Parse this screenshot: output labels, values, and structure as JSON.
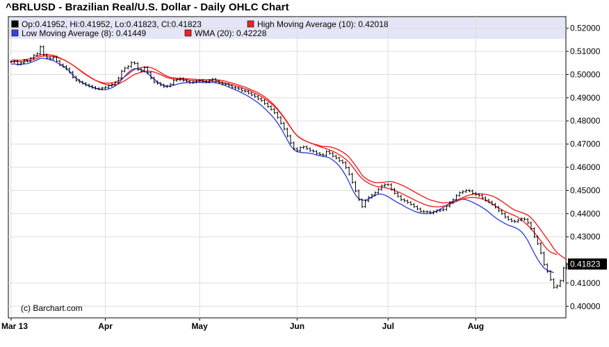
{
  "title": "^BRLUSD - Brazilian Real/U.S. Dollar - Daily OHLC Chart",
  "legend": {
    "ohlc": "Op:0.41952, Hi:0.41952, Lo:0.41823, Cl:0.41823",
    "high_ma": "High Moving Average (10): 0.42018",
    "low_ma": "Low Moving Average (8): 0.41449",
    "wma": "WMA (20): 0.42228"
  },
  "colors": {
    "ohlc": "#000000",
    "high_ma": "#ee2222",
    "low_ma": "#3344dd",
    "wma": "#ee2222",
    "legend_bg": "#e4e6f7",
    "last_price_bg": "#000000"
  },
  "copyright": "(c) Barchart.com",
  "chart_data": {
    "type": "line",
    "ylim": [
      0.395,
      0.525
    ],
    "y_ticks": [
      "0.52000",
      "0.51000",
      "0.50000",
      "0.49000",
      "0.48000",
      "0.47000",
      "0.46000",
      "0.45000",
      "0.44000",
      "0.43000",
      "0.41000",
      "0.40000"
    ],
    "y_tick_values": [
      0.52,
      0.51,
      0.5,
      0.49,
      0.48,
      0.47,
      0.46,
      0.45,
      0.44,
      0.43,
      0.41,
      0.4
    ],
    "last_price_label": "0.41823",
    "last_price": 0.41823,
    "x_labels": [
      "Mar 13",
      "Apr",
      "May",
      "Jun",
      "Jul",
      "Aug"
    ],
    "x_label_index": [
      0,
      29,
      58,
      88,
      116,
      143
    ],
    "n_days": 170,
    "ohlc_close": [
      0.5055,
      0.5058,
      0.5045,
      0.505,
      0.5062,
      0.5058,
      0.507,
      0.5083,
      0.509,
      0.512,
      0.5085,
      0.5072,
      0.5068,
      0.5075,
      0.5058,
      0.5042,
      0.5035,
      0.5025,
      0.501,
      0.4988,
      0.4975,
      0.4968,
      0.4962,
      0.4955,
      0.495,
      0.4945,
      0.494,
      0.4938,
      0.4942,
      0.4945,
      0.4952,
      0.4958,
      0.4965,
      0.4985,
      0.5015,
      0.5028,
      0.5035,
      0.5052,
      0.5048,
      0.5022,
      0.5015,
      0.503,
      0.5008,
      0.4985,
      0.4968,
      0.4962,
      0.4955,
      0.4948,
      0.495,
      0.4958,
      0.4975,
      0.4978,
      0.4982,
      0.4975,
      0.497,
      0.4965,
      0.4968,
      0.4972,
      0.4975,
      0.497,
      0.4968,
      0.4975,
      0.498,
      0.4972,
      0.4965,
      0.496,
      0.4958,
      0.4952,
      0.4945,
      0.4942,
      0.4938,
      0.493,
      0.4928,
      0.492,
      0.4912,
      0.4905,
      0.4895,
      0.4888,
      0.4875,
      0.4862,
      0.485,
      0.4835,
      0.4815,
      0.479,
      0.4765,
      0.4735,
      0.4705,
      0.468,
      0.4672,
      0.4685,
      0.4688,
      0.468,
      0.4672,
      0.4668,
      0.466,
      0.4655,
      0.4652,
      0.4668,
      0.466,
      0.4648,
      0.464,
      0.4628,
      0.462,
      0.4598,
      0.457,
      0.4535,
      0.4498,
      0.446,
      0.443,
      0.4455,
      0.447,
      0.448,
      0.449,
      0.4505,
      0.452,
      0.4525,
      0.4525,
      0.4505,
      0.4488,
      0.4475,
      0.446,
      0.4455,
      0.4448,
      0.444,
      0.443,
      0.442,
      0.441,
      0.4408,
      0.4408,
      0.4402,
      0.4408,
      0.4412,
      0.4415,
      0.4418,
      0.4432,
      0.4448,
      0.446,
      0.4478,
      0.449,
      0.4495,
      0.45,
      0.4498,
      0.4488,
      0.4482,
      0.4478,
      0.4468,
      0.4458,
      0.445,
      0.444,
      0.4428,
      0.4412,
      0.44,
      0.4385,
      0.4375,
      0.4368,
      0.4365,
      0.4372,
      0.4378,
      0.4375,
      0.436,
      0.4335,
      0.43,
      0.427,
      0.423,
      0.418,
      0.415,
      0.4115,
      0.4082,
      0.4088,
      0.411,
      0.4165,
      0.4182
    ],
    "series": [
      {
        "name": "High Moving Average (10)",
        "color": "#ee2222",
        "values": [
          0.5062,
          0.5063,
          0.5062,
          0.5062,
          0.5064,
          0.5066,
          0.5069,
          0.5073,
          0.5078,
          0.5085,
          0.5087,
          0.5087,
          0.5085,
          0.5083,
          0.5079,
          0.5072,
          0.5065,
          0.5058,
          0.505,
          0.5041,
          0.503,
          0.502,
          0.5009,
          0.4999,
          0.4991,
          0.4982,
          0.4975,
          0.497,
          0.4965,
          0.4963,
          0.4963,
          0.4964,
          0.4967,
          0.4973,
          0.4981,
          0.4991,
          0.5002,
          0.5013,
          0.5022,
          0.5027,
          0.503,
          0.5033,
          0.5033,
          0.503,
          0.5025,
          0.5017,
          0.5009,
          0.5,
          0.4993,
          0.4988,
          0.4986,
          0.4984,
          0.4984,
          0.4983,
          0.4982,
          0.4981,
          0.498,
          0.4979,
          0.4978,
          0.4978,
          0.4978,
          0.4978,
          0.4979,
          0.4978,
          0.4976,
          0.4974,
          0.4971,
          0.4967,
          0.4963,
          0.4959,
          0.4955,
          0.495,
          0.4946,
          0.494,
          0.4934,
          0.4928,
          0.4921,
          0.4913,
          0.4904,
          0.4893,
          0.4881,
          0.4868,
          0.4852,
          0.4834,
          0.4815,
          0.4795,
          0.4773,
          0.4752,
          0.4736,
          0.4725,
          0.4717,
          0.4711,
          0.4705,
          0.4701,
          0.4697,
          0.4693,
          0.469,
          0.4689,
          0.4688,
          0.4685,
          0.468,
          0.4674,
          0.4666,
          0.4656,
          0.4643,
          0.4626,
          0.4607,
          0.4587,
          0.4565,
          0.4553,
          0.4544,
          0.4538,
          0.4534,
          0.4533,
          0.4534,
          0.4536,
          0.4538,
          0.4538,
          0.4535,
          0.453,
          0.4524,
          0.4518,
          0.451,
          0.4503,
          0.4495,
          0.4487,
          0.4479,
          0.4472,
          0.4465,
          0.4459,
          0.4455,
          0.4451,
          0.4448,
          0.4446,
          0.4447,
          0.4449,
          0.4452,
          0.4457,
          0.4463,
          0.4469,
          0.4475,
          0.448,
          0.4483,
          0.4485,
          0.4486,
          0.4485,
          0.4483,
          0.448,
          0.4476,
          0.447,
          0.4462,
          0.4453,
          0.4443,
          0.4433,
          0.4423,
          0.4415,
          0.441,
          0.4405,
          0.44,
          0.4393,
          0.4382,
          0.4366,
          0.4348,
          0.4329,
          0.4309,
          0.429,
          0.427,
          0.4248,
          0.4232,
          0.422,
          0.421,
          0.4202
        ]
      },
      {
        "name": "Low Moving Average (8)",
        "color": "#3344dd",
        "values": [
          0.5045,
          0.5046,
          0.5043,
          0.5043,
          0.5046,
          0.5047,
          0.5052,
          0.5057,
          0.5063,
          0.507,
          0.507,
          0.5068,
          0.5064,
          0.506,
          0.5053,
          0.5044,
          0.5036,
          0.5025,
          0.5013,
          0.4998,
          0.4985,
          0.4974,
          0.4964,
          0.4957,
          0.4951,
          0.4945,
          0.494,
          0.4937,
          0.4935,
          0.4935,
          0.4938,
          0.4943,
          0.495,
          0.4961,
          0.4977,
          0.4993,
          0.5008,
          0.502,
          0.5026,
          0.5025,
          0.5021,
          0.5016,
          0.5005,
          0.4993,
          0.498,
          0.4969,
          0.496,
          0.4953,
          0.495,
          0.495,
          0.4954,
          0.4958,
          0.4962,
          0.4964,
          0.4965,
          0.4965,
          0.4965,
          0.4966,
          0.4967,
          0.4966,
          0.4965,
          0.4966,
          0.4966,
          0.4964,
          0.4961,
          0.4957,
          0.4952,
          0.4946,
          0.494,
          0.4934,
          0.4928,
          0.4921,
          0.4914,
          0.4906,
          0.4897,
          0.4888,
          0.4878,
          0.4867,
          0.4854,
          0.484,
          0.4826,
          0.481,
          0.4791,
          0.4769,
          0.4744,
          0.4718,
          0.4693,
          0.4676,
          0.4667,
          0.4664,
          0.4663,
          0.4662,
          0.466,
          0.4657,
          0.4653,
          0.465,
          0.4647,
          0.4645,
          0.464,
          0.4631,
          0.462,
          0.4605,
          0.4586,
          0.4563,
          0.4535,
          0.4505,
          0.448,
          0.4464,
          0.4458,
          0.4458,
          0.4463,
          0.4471,
          0.4479,
          0.4484,
          0.4484,
          0.448,
          0.4473,
          0.4464,
          0.4455,
          0.4447,
          0.444,
          0.4432,
          0.4424,
          0.4417,
          0.4411,
          0.4406,
          0.4402,
          0.44,
          0.44,
          0.4402,
          0.4406,
          0.4412,
          0.4419,
          0.4427,
          0.4436,
          0.4445,
          0.4452,
          0.4458,
          0.4461,
          0.4462,
          0.446,
          0.4455,
          0.4449,
          0.4442,
          0.4435,
          0.4426,
          0.4417,
          0.4406,
          0.4394,
          0.4383,
          0.4373,
          0.4365,
          0.4357,
          0.435,
          0.4345,
          0.434,
          0.4333,
          0.4322,
          0.4305,
          0.4283,
          0.4256,
          0.4228,
          0.4203,
          0.4182,
          0.4165,
          0.4155,
          0.415,
          0.4145
        ]
      },
      {
        "name": "WMA (20)",
        "color": "#ee2222",
        "values": [
          0.5056,
          0.5057,
          0.5056,
          0.5056,
          0.5057,
          0.5058,
          0.5061,
          0.5065,
          0.507,
          0.5078,
          0.508,
          0.508,
          0.5079,
          0.5078,
          0.5075,
          0.507,
          0.5065,
          0.5058,
          0.505,
          0.5041,
          0.5031,
          0.5021,
          0.5011,
          0.5001,
          0.4992,
          0.4983,
          0.4975,
          0.4968,
          0.4962,
          0.4958,
          0.4955,
          0.4954,
          0.4955,
          0.4959,
          0.4966,
          0.4974,
          0.4983,
          0.4993,
          0.5001,
          0.5006,
          0.501,
          0.5014,
          0.5015,
          0.5014,
          0.5011,
          0.5006,
          0.5,
          0.4993,
          0.4987,
          0.4983,
          0.4981,
          0.498,
          0.4979,
          0.4978,
          0.4977,
          0.4975,
          0.4974,
          0.4973,
          0.4973,
          0.4972,
          0.4971,
          0.4971,
          0.4971,
          0.497,
          0.4968,
          0.4966,
          0.4963,
          0.496,
          0.4956,
          0.4952,
          0.4948,
          0.4943,
          0.4938,
          0.4933,
          0.4927,
          0.492,
          0.4913,
          0.4905,
          0.4896,
          0.4886,
          0.4875,
          0.4862,
          0.4848,
          0.4831,
          0.4813,
          0.4792,
          0.4771,
          0.4752,
          0.4737,
          0.4726,
          0.4718,
          0.4711,
          0.4705,
          0.47,
          0.4694,
          0.4689,
          0.4684,
          0.468,
          0.4675,
          0.4669,
          0.4662,
          0.4654,
          0.4645,
          0.4634,
          0.4621,
          0.4604,
          0.4585,
          0.4566,
          0.4551,
          0.454,
          0.4531,
          0.4524,
          0.4519,
          0.4516,
          0.4514,
          0.4512,
          0.4509,
          0.4505,
          0.45,
          0.4494,
          0.4488,
          0.4481,
          0.4474,
          0.4467,
          0.446,
          0.4453,
          0.4447,
          0.4441,
          0.4436,
          0.4432,
          0.443,
          0.4429,
          0.443,
          0.4432,
          0.4435,
          0.444,
          0.4446,
          0.4452,
          0.4458,
          0.4463,
          0.4467,
          0.4469,
          0.447,
          0.4469,
          0.4467,
          0.4463,
          0.4457,
          0.445,
          0.4442,
          0.4433,
          0.4424,
          0.4416,
          0.4409,
          0.4403,
          0.4397,
          0.4391,
          0.4384,
          0.4374,
          0.4362,
          0.4349,
          0.4334,
          0.4318,
          0.43,
          0.4282,
          0.4262,
          0.4245,
          0.4234,
          0.4228,
          0.4223
        ]
      }
    ]
  }
}
